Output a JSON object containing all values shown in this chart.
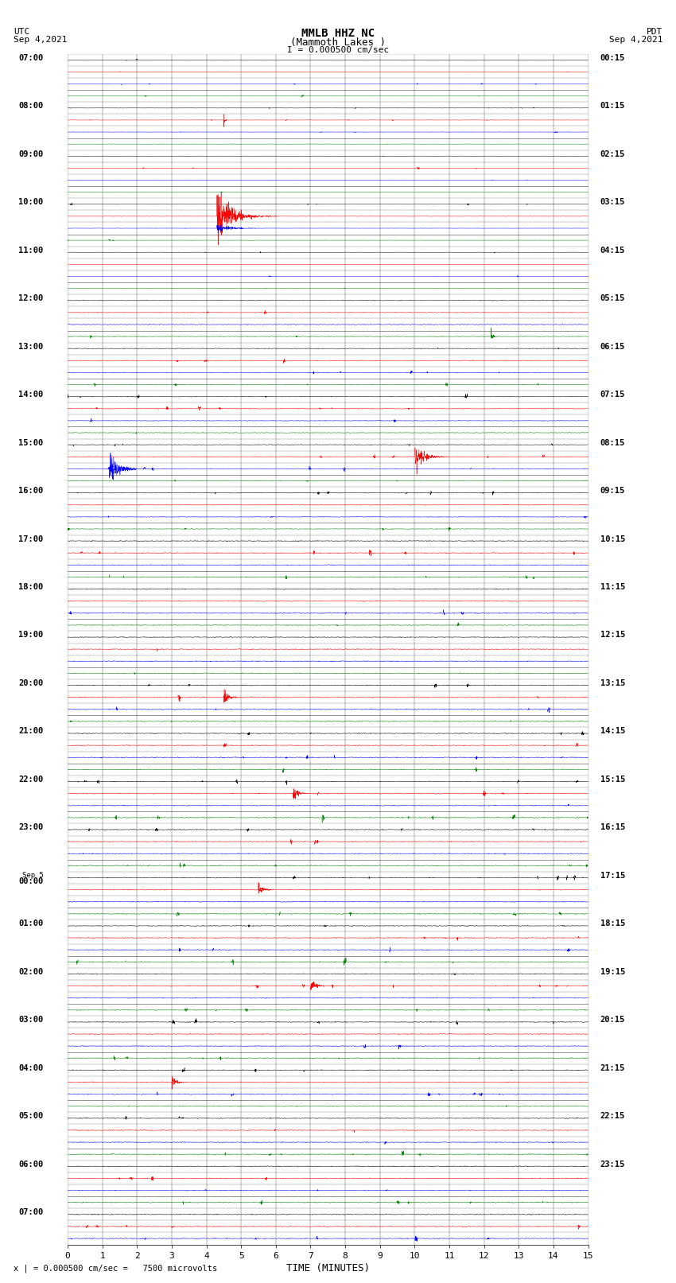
{
  "title_line1": "MMLB HHZ NC",
  "title_line2": "(Mammoth Lakes )",
  "title_scale": "I = 0.000500 cm/sec",
  "left_header_line1": "UTC",
  "left_header_line2": "Sep 4,2021",
  "right_header_line1": "PDT",
  "right_header_line2": "Sep 4,2021",
  "bottom_label": "TIME (MINUTES)",
  "bottom_note": "x | = 0.000500 cm/sec =   7500 microvolts",
  "n_traces": 99,
  "minutes_per_trace": 15,
  "trace_colors_cycle": [
    "black",
    "red",
    "blue",
    "green"
  ],
  "background_color": "white",
  "amp_scale": 0.28,
  "right_times": [
    "00:15",
    "01:15",
    "02:15",
    "03:15",
    "04:15",
    "05:15",
    "06:15",
    "07:15",
    "08:15",
    "09:15",
    "10:15",
    "11:15",
    "12:15",
    "13:15",
    "14:15",
    "15:15",
    "16:15",
    "17:15",
    "18:15",
    "19:15",
    "20:15",
    "21:15",
    "22:15",
    "23:15"
  ]
}
